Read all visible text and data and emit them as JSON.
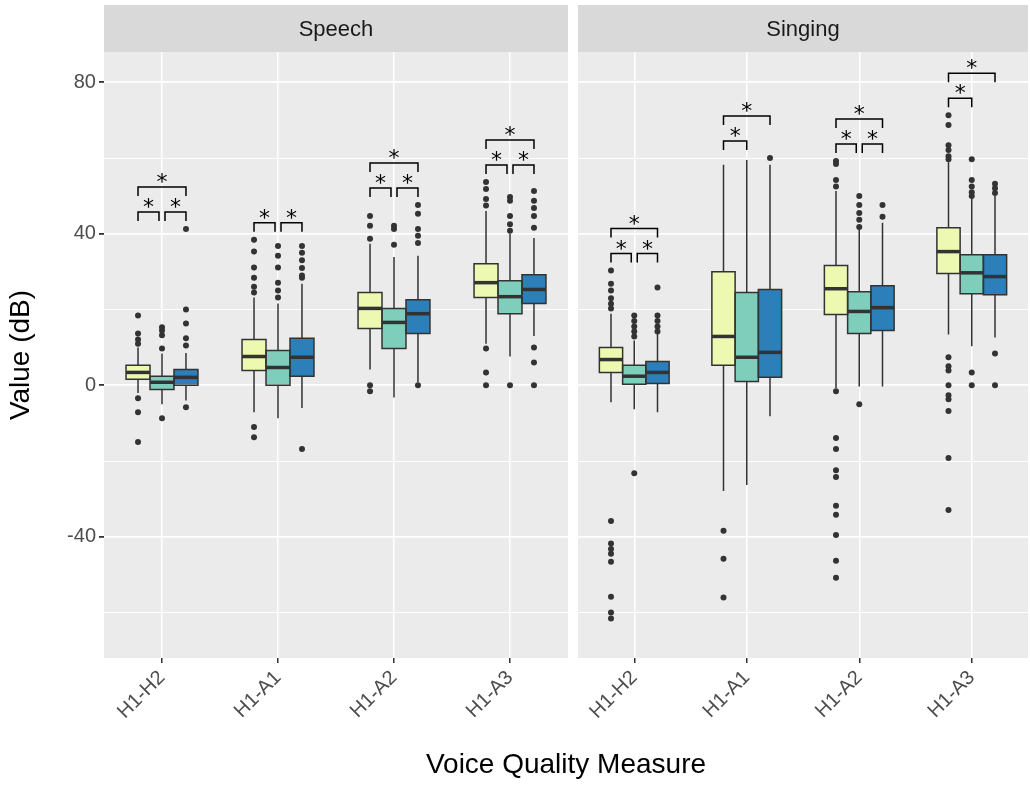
{
  "chart_data": [
    {
      "type": "box",
      "title": "Speech",
      "ylabel": "Value (dB)",
      "xlabel": "Voice Quality Measure",
      "categories": [
        "H1-H2",
        "H1-A1",
        "H1-A2",
        "H1-A3"
      ],
      "ylim": [
        -72,
        88
      ],
      "yticks": [
        {
          "value": -60,
          "label": null
        },
        -40,
        {
          "value": -20,
          "label": null
        },
        0,
        {
          "value": 20,
          "label": null
        },
        40,
        {
          "value": 60,
          "label": null
        },
        80
      ],
      "grid": true,
      "series": [
        {
          "color": "#edf8b1",
          "boxes": [
            {
              "low": -2,
              "q1": 1.6,
              "median": 3.4,
              "q3": 5.3,
              "high": 10,
              "outliers": [
                18.4,
                13.7,
                12.1,
                11,
                -3.4,
                -7.1,
                -15
              ]
            },
            {
              "low": -7.1,
              "q1": 3.9,
              "median": 7.6,
              "q3": 12.1,
              "high": 23.2,
              "outliers": [
                38.4,
                35.3,
                31.1,
                28.4,
                26,
                24.5,
                -11,
                -13.7
              ]
            },
            {
              "low": 4.2,
              "q1": 15,
              "median": 20.3,
              "q3": 24.5,
              "high": 37.4,
              "outliers": [
                44.7,
                42.1,
                38.7,
                0,
                -1.6
              ]
            },
            {
              "low": 11,
              "q1": 23.2,
              "median": 27.1,
              "q3": 32.1,
              "high": 46,
              "outliers": [
                53.7,
                51.8,
                49.2,
                47.5,
                9.7,
                3.4,
                0
              ]
            }
          ]
        },
        {
          "color": "#7fcdbb",
          "boxes": [
            {
              "low": -5,
              "q1": -1.1,
              "median": 0.8,
              "q3": 2.4,
              "high": 8.4,
              "outliers": [
                15.3,
                14.5,
                13.2,
                9.7,
                -8.7
              ]
            },
            {
              "low": -8.7,
              "q1": 0,
              "median": 4.7,
              "q3": 9.2,
              "high": 21.6,
              "outliers": [
                36.8,
                34.2,
                31.1,
                27.1,
                25,
                23.2
              ]
            },
            {
              "low": -3.2,
              "q1": 9.7,
              "median": 16.6,
              "q3": 20.3,
              "high": 33.9,
              "outliers": [
                42.1,
                41.3,
                37.1
              ]
            },
            {
              "low": 7.6,
              "q1": 18.9,
              "median": 23.4,
              "q3": 27.6,
              "high": 40,
              "outliers": [
                49.7,
                48.7,
                44.7,
                42.5,
                40.8,
                0
              ]
            }
          ]
        },
        {
          "color": "#2c7fb8",
          "boxes": [
            {
              "low": -4,
              "q1": 0,
              "median": 2.1,
              "q3": 4.2,
              "high": 8.5,
              "outliers": [
                41.3,
                20,
                16.3,
                12.4,
                10.5,
                -5.8
              ]
            },
            {
              "low": -6,
              "q1": 2.4,
              "median": 7.4,
              "q3": 12.4,
              "high": 26.8,
              "outliers": [
                36.8,
                35,
                33,
                31,
                29,
                28.4,
                -16.8
              ]
            },
            {
              "low": 0.8,
              "q1": 13.7,
              "median": 18.9,
              "q3": 22.6,
              "high": 34.2,
              "outliers": [
                47.6,
                45.3,
                41.3,
                39.5,
                37.6,
                0
              ]
            },
            {
              "low": 13,
              "q1": 21.6,
              "median": 25.3,
              "q3": 29.2,
              "high": 38.9,
              "outliers": [
                51.3,
                48.7,
                46.8,
                44.7,
                41.6,
                10,
                6,
                0
              ]
            }
          ]
        }
      ],
      "annotations": [
        "*",
        "*",
        "*",
        "*",
        "*",
        "*",
        "*",
        "*",
        "*",
        "*",
        "*"
      ]
    },
    {
      "type": "box",
      "title": "Singing",
      "categories": [
        "H1-H2",
        "H1-A1",
        "H1-A2",
        "H1-A3"
      ],
      "ylim": [
        -72,
        88
      ],
      "yticks": [
        {
          "value": -60,
          "label": null
        },
        -40,
        {
          "value": -20,
          "label": null
        },
        0,
        {
          "value": 20,
          "label": null
        },
        40,
        {
          "value": 60,
          "label": null
        },
        80
      ],
      "grid": true,
      "tick_labels": "x",
      "series": [
        {
          "color": "#edf8b1",
          "boxes": [
            {
              "low": -4.5,
              "q1": 3.4,
              "median": 6.8,
              "q3": 10,
              "high": 18.9,
              "outliers": [
                30.3,
                26.8,
                25,
                23,
                21.5,
                20.3,
                -35.8,
                -41.8,
                -43.2,
                -44.5,
                -46.6,
                -55.8,
                -60,
                -61.6
              ]
            },
            {
              "low": -27.9,
              "q1": 5.3,
              "median": 12.9,
              "q3": 30,
              "high": 58.2,
              "outliers": [
                -38.4,
                -45.8,
                -56
              ]
            },
            {
              "low": -0.8,
              "q1": 18.7,
              "median": 25.5,
              "q3": 31.6,
              "high": 51.3,
              "outliers": [
                59.2,
                58.4,
                54.2,
                52.5,
                -1.6,
                -13.9,
                -16.8,
                -22.4,
                -24.2,
                -31.8,
                -34.2,
                -39.5,
                -46.3,
                -50.8
              ]
            },
            {
              "low": 13.4,
              "q1": 29.5,
              "median": 35.3,
              "q3": 41.6,
              "high": 58.9,
              "outliers": [
                71.3,
                68.7,
                63.4,
                62.1,
                60.5,
                59.7,
                7.4,
                5,
                3.9,
                0,
                -2.6,
                -3.7,
                -6.8,
                -19.2,
                -32.9
              ]
            }
          ]
        },
        {
          "color": "#7fcdbb",
          "boxes": [
            {
              "low": -6.3,
              "q1": 0.3,
              "median": 2.4,
              "q3": 5.3,
              "high": 11.8,
              "outliers": [
                18.4,
                17,
                15.5,
                14.2,
                12.9,
                -23.2
              ]
            },
            {
              "low": -26.3,
              "q1": 1,
              "median": 7.4,
              "q3": 24.5,
              "high": 59.5
            },
            {
              "low": -0.3,
              "q1": 13.7,
              "median": 19.5,
              "q3": 24.7,
              "high": 41.3,
              "outliers": [
                50,
                47.6,
                45.5,
                43.7,
                41.8,
                -5
              ]
            },
            {
              "low": 10.3,
              "q1": 24.2,
              "median": 29.7,
              "q3": 34.5,
              "high": 49.5,
              "outliers": [
                59.7,
                54.2,
                52.5,
                51,
                50,
                3.4,
                0
              ]
            }
          ]
        },
        {
          "color": "#2c7fb8",
          "boxes": [
            {
              "low": -7.1,
              "q1": 0.5,
              "median": 3.4,
              "q3": 6.3,
              "high": 13.7,
              "outliers": [
                25.8,
                18.4,
                17,
                15.5,
                14.2
              ]
            },
            {
              "low": -8.2,
              "q1": 2.1,
              "median": 8.7,
              "q3": 25.3,
              "high": 58.2,
              "outliers": [
                60
              ]
            },
            {
              "low": -0.3,
              "q1": 14.5,
              "median": 20.5,
              "q3": 26.3,
              "high": 42.9,
              "outliers": [
                47.6,
                44.5
              ]
            },
            {
              "low": 12.6,
              "q1": 23.9,
              "median": 28.7,
              "q3": 34.5,
              "high": 50,
              "outliers": [
                53.2,
                52,
                50.8,
                8.4,
                0
              ]
            }
          ]
        }
      ],
      "annotations": [
        "*",
        "*",
        "*",
        "*",
        "*",
        "*",
        "*",
        "*",
        "*",
        "*"
      ]
    }
  ]
}
